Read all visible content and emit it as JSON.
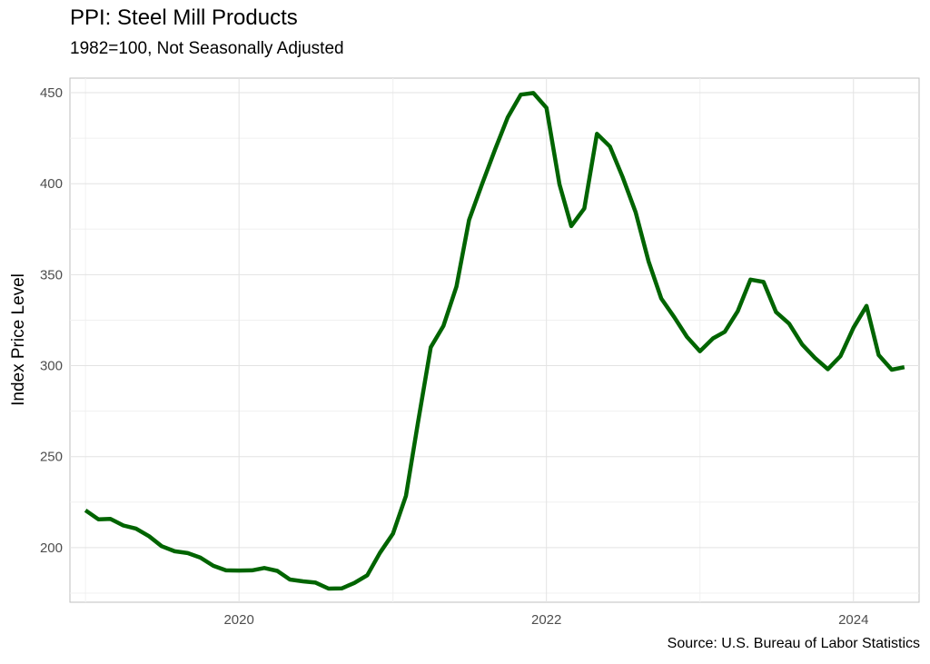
{
  "chart_data": {
    "type": "line",
    "title": "PPI: Steel Mill Products",
    "subtitle": "1982=100, Not Seasonally Adjusted",
    "caption": "Source: U.S. Bureau of Labor Statistics",
    "xlabel": "",
    "ylabel": "Index Price Level",
    "xlim": [
      "2018-11-25",
      "2024-06-05"
    ],
    "ylim": [
      170,
      458
    ],
    "x_ticks": [
      {
        "value": "2020-01-01",
        "label": "2020"
      },
      {
        "value": "2022-01-01",
        "label": "2022"
      },
      {
        "value": "2024-01-01",
        "label": "2024"
      }
    ],
    "y_ticks": [
      200,
      250,
      300,
      350,
      400,
      450
    ],
    "grid": true,
    "series": [
      {
        "color": "#006400",
        "x": [
          "2019-01",
          "2019-02",
          "2019-03",
          "2019-04",
          "2019-05",
          "2019-06",
          "2019-07",
          "2019-08",
          "2019-09",
          "2019-10",
          "2019-11",
          "2019-12",
          "2020-01",
          "2020-02",
          "2020-03",
          "2020-04",
          "2020-05",
          "2020-06",
          "2020-07",
          "2020-08",
          "2020-09",
          "2020-10",
          "2020-11",
          "2020-12",
          "2021-01",
          "2021-02",
          "2021-03",
          "2021-04",
          "2021-05",
          "2021-06",
          "2021-07",
          "2021-08",
          "2021-09",
          "2021-10",
          "2021-11",
          "2021-12",
          "2022-01",
          "2022-02",
          "2022-03",
          "2022-04",
          "2022-05",
          "2022-06",
          "2022-07",
          "2022-08",
          "2022-09",
          "2022-10",
          "2022-11",
          "2022-12",
          "2023-01",
          "2023-02",
          "2023-03",
          "2023-04",
          "2023-05",
          "2023-06",
          "2023-07",
          "2023-08",
          "2023-09",
          "2023-10",
          "2023-11",
          "2023-12",
          "2024-01",
          "2024-02",
          "2024-03",
          "2024-04",
          "2024-05"
        ],
        "values": [
          220.5,
          215.5,
          215.8,
          212.2,
          210.5,
          206.3,
          200.8,
          198.0,
          197.0,
          194.5,
          190.0,
          187.5,
          187.4,
          187.5,
          188.8,
          187.2,
          182.5,
          181.5,
          180.8,
          177.5,
          177.6,
          180.6,
          184.8,
          197.1,
          207.7,
          228.5,
          268.1,
          310.1,
          321.8,
          343.5,
          380.1,
          399.8,
          418.9,
          436.5,
          448.9,
          449.8,
          441.7,
          399.7,
          376.7,
          386.4,
          427.4,
          420.4,
          403.7,
          384.3,
          357.2,
          336.9,
          326.6,
          315.8,
          307.9,
          315.0,
          318.6,
          330.0,
          347.3,
          346.0,
          329.4,
          323.1,
          311.6,
          304.3,
          298.1,
          305.2,
          320.9,
          332.8,
          305.8,
          297.8,
          299.2
        ]
      }
    ]
  }
}
